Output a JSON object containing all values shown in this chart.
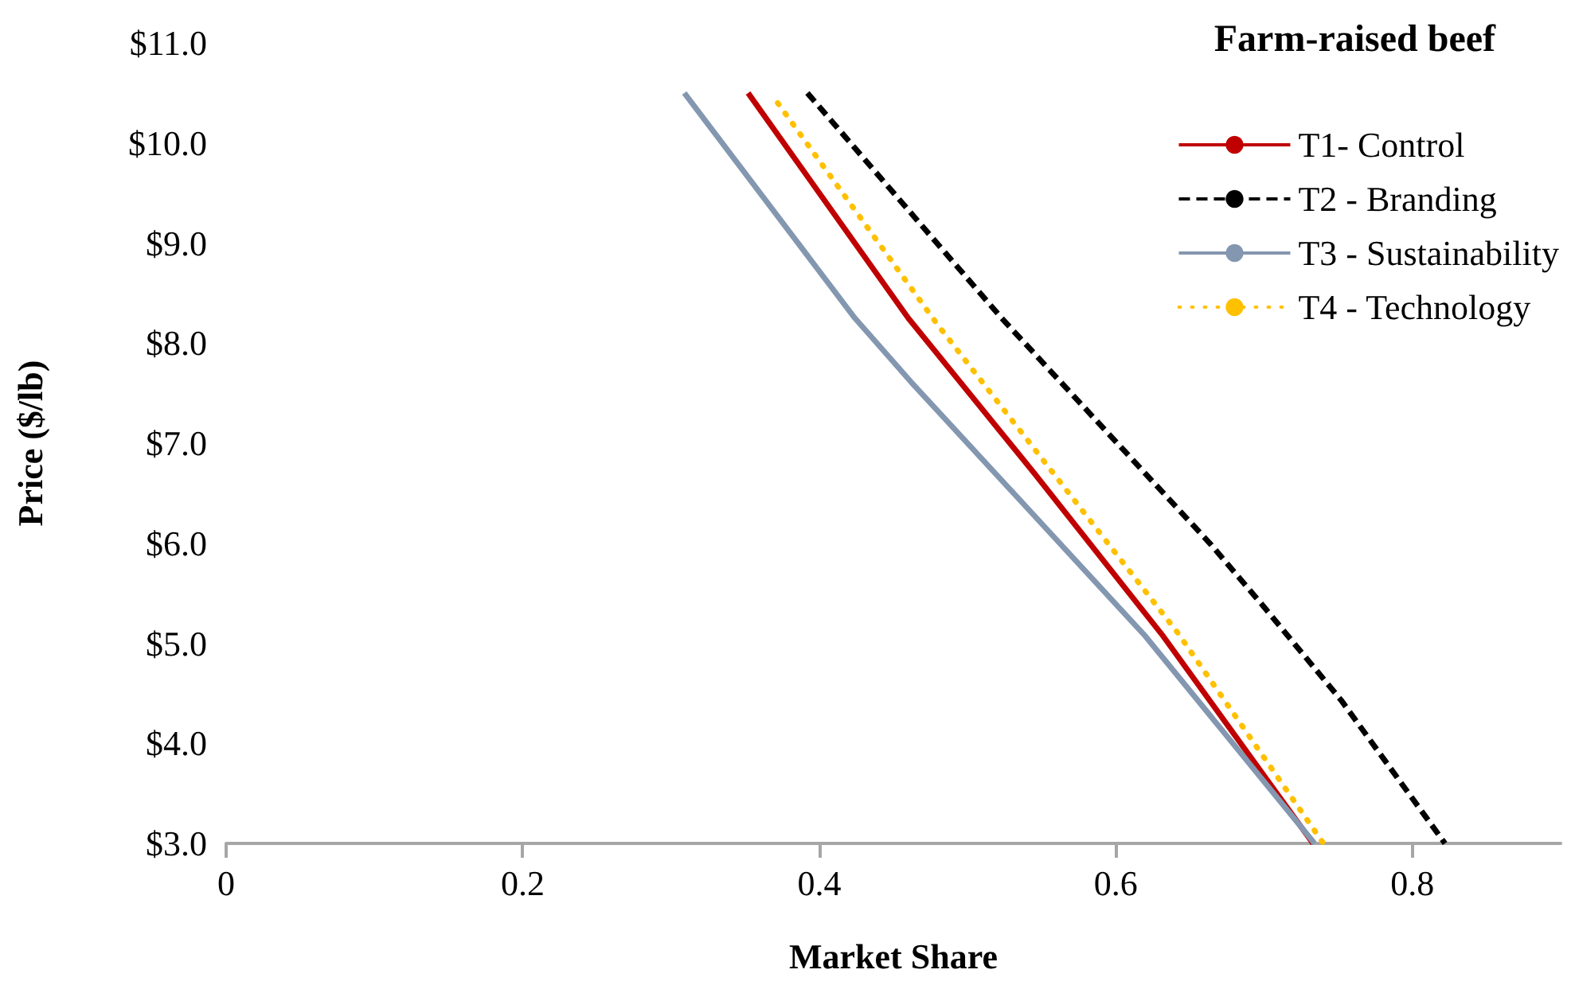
{
  "chart_data": {
    "type": "line",
    "legend_title": "Farm-raised beef",
    "xlabel": "Market Share",
    "ylabel": "Price ($/lb)",
    "xlim": [
      0,
      0.9
    ],
    "xticks": [
      0,
      0.2,
      0.4,
      0.6,
      0.8
    ],
    "ylim": [
      3,
      11
    ],
    "yticks": [
      {
        "value": 3,
        "label": "$3.0"
      },
      {
        "value": 4,
        "label": "$4.0"
      },
      {
        "value": 5,
        "label": "$5.0"
      },
      {
        "value": 6,
        "label": "$6.0"
      },
      {
        "value": 7,
        "label": "$7.0"
      },
      {
        "value": 8,
        "label": "$8.0"
      },
      {
        "value": 9,
        "label": "$9.0"
      },
      {
        "value": 10,
        "label": "$10.0"
      },
      {
        "value": 11,
        "label": "$11.0"
      }
    ],
    "grid": false,
    "legend": "top right",
    "marker": "none",
    "series": [
      {
        "name": "T1- Control",
        "color": "#c00000",
        "line_style": "solid",
        "x": [
          0.352,
          0.46,
          0.545,
          0.632,
          0.733
        ],
        "values": [
          10.5,
          8.25,
          6.7,
          5.07,
          3
        ]
      },
      {
        "name": "T2 - Branding",
        "color": "#000000",
        "line_style": "dashed",
        "x": [
          0.392,
          0.523,
          0.664,
          0.699,
          0.752,
          0.822
        ],
        "values": [
          10.5,
          8.25,
          5.99,
          5.38,
          4.43,
          3
        ]
      },
      {
        "name": "T3 - Sustainability",
        "color": "#8497b0",
        "line_style": "solid",
        "x": [
          0.309,
          0.424,
          0.462,
          0.62,
          0.734
        ],
        "values": [
          10.5,
          8.25,
          7.61,
          5.07,
          3
        ]
      },
      {
        "name": "T4 - Technology",
        "color": "#ffc000",
        "line_style": "dotted",
        "x": [
          0.372,
          0.48,
          0.642,
          0.74
        ],
        "values": [
          10.4,
          8.18,
          5.1,
          3
        ]
      }
    ]
  }
}
